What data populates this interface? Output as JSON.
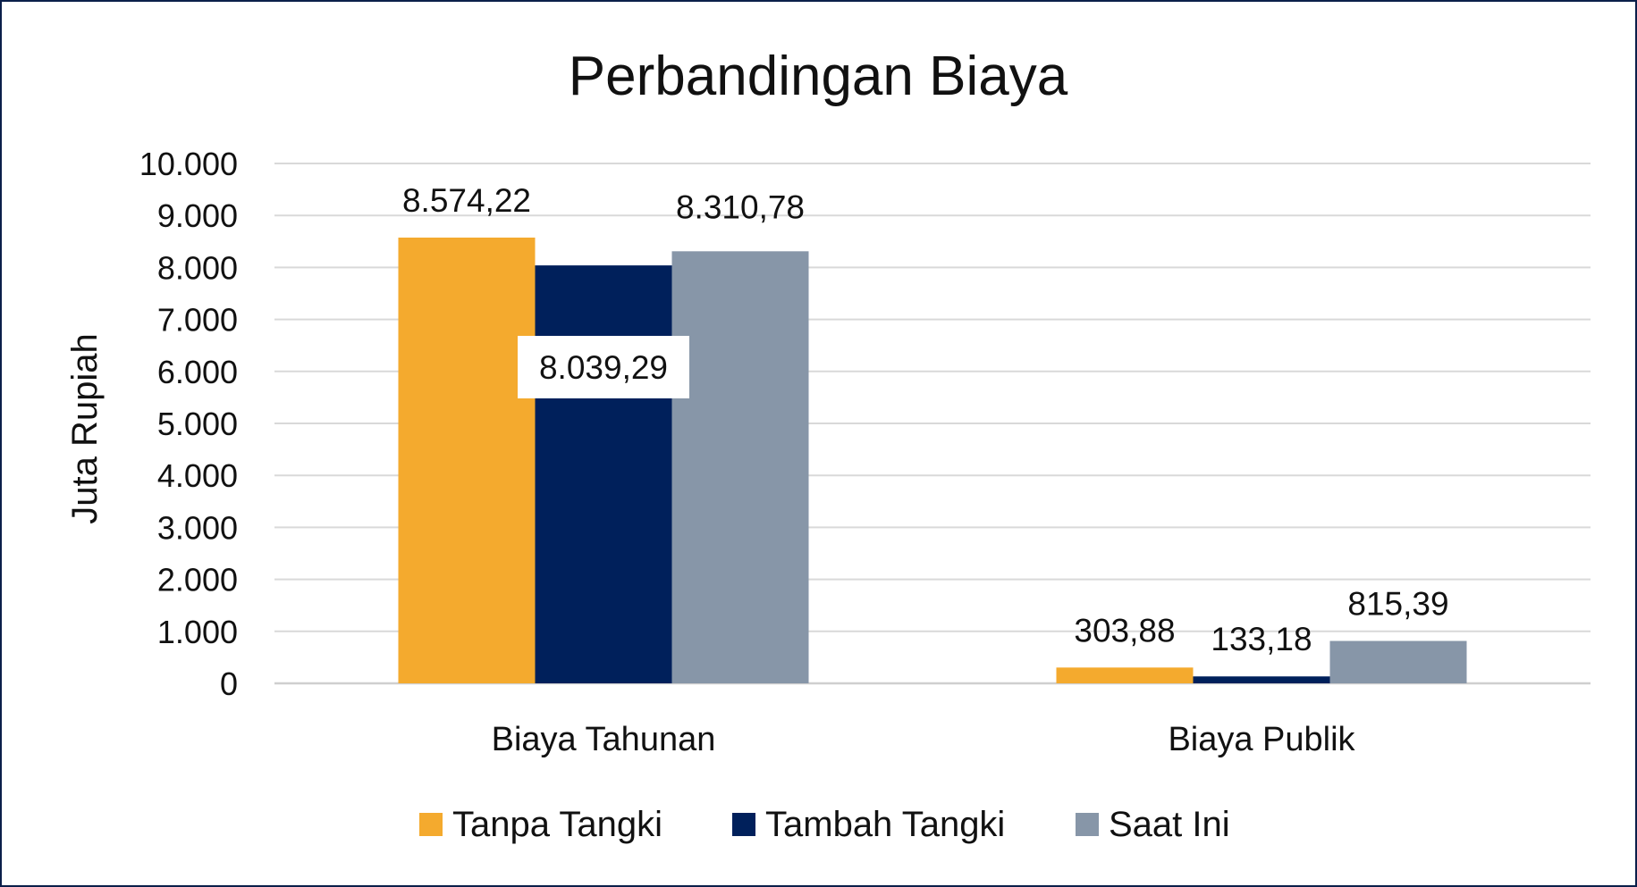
{
  "chart_data": {
    "type": "bar",
    "title": "Perbandingan Biaya",
    "ylabel": "Juta Rupiah",
    "xlabel": "",
    "ylim": [
      0,
      10000
    ],
    "yticks": [
      {
        "value": 0,
        "label": "0"
      },
      {
        "value": 1000,
        "label": "1.000"
      },
      {
        "value": 2000,
        "label": "2.000"
      },
      {
        "value": 3000,
        "label": "3.000"
      },
      {
        "value": 4000,
        "label": "4.000"
      },
      {
        "value": 5000,
        "label": "5.000"
      },
      {
        "value": 6000,
        "label": "6.000"
      },
      {
        "value": 7000,
        "label": "7.000"
      },
      {
        "value": 8000,
        "label": "8.000"
      },
      {
        "value": 9000,
        "label": "9.000"
      },
      {
        "value": 10000,
        "label": "10.000"
      }
    ],
    "grid": true,
    "legend_position": "bottom",
    "categories": [
      "Biaya Tahunan",
      "Biaya Publik"
    ],
    "series": [
      {
        "name": "Tanpa Tangki",
        "color": "#F4AA2E",
        "values": [
          8574.22,
          303.88
        ],
        "labels": [
          "8.574,22",
          "303,88"
        ]
      },
      {
        "name": "Tambah Tangki",
        "color": "#00205B",
        "values": [
          8039.29,
          133.18
        ],
        "labels": [
          "8.039,29",
          "133,18"
        ]
      },
      {
        "name": "Saat Ini",
        "color": "#8796A8",
        "values": [
          8310.78,
          815.39
        ],
        "labels": [
          "8.310,78",
          "815,39"
        ]
      }
    ]
  }
}
